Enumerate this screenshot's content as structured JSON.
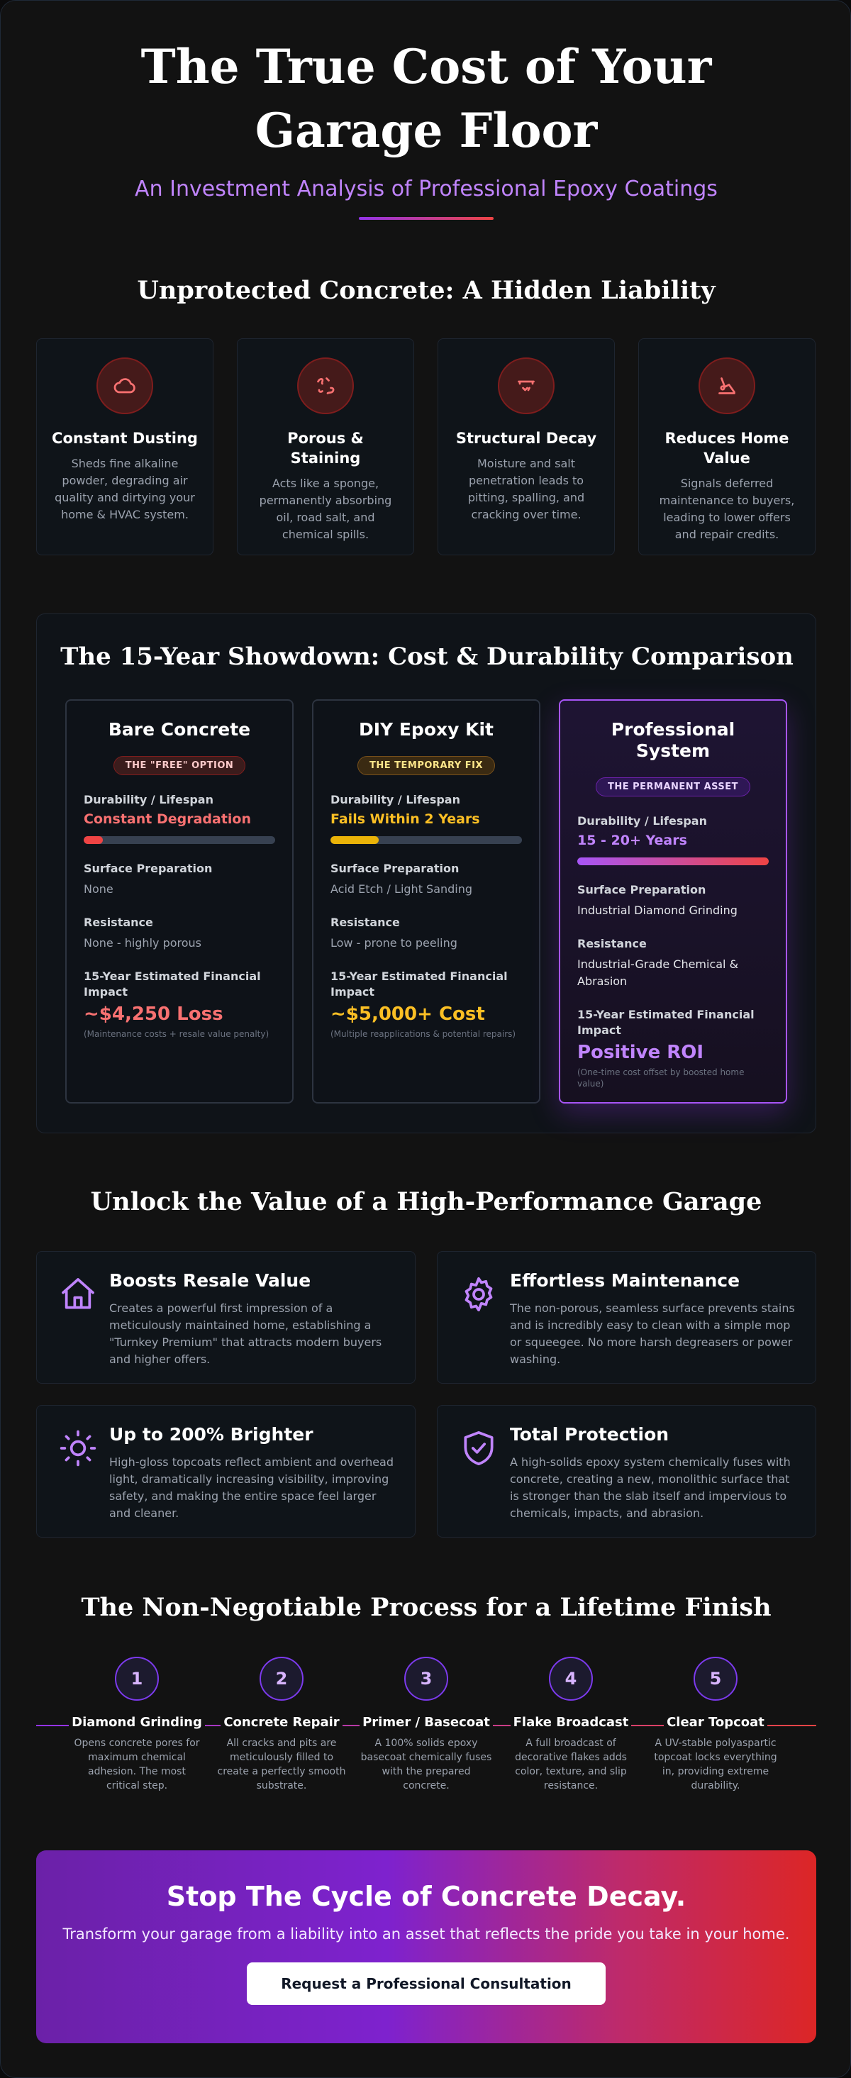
{
  "hero": {
    "title": "The True Cost of Your Garage Floor",
    "subtitle": "An Investment Analysis of Professional Epoxy Coatings"
  },
  "liability": {
    "title": "Unprotected Concrete: A Hidden Liability",
    "items": [
      {
        "icon": "cloud-icon",
        "title": "Constant Dusting",
        "text": "Sheds fine alkaline powder, degrading air quality and dirtying your home & HVAC system."
      },
      {
        "icon": "spill-icon",
        "title": "Porous & Staining",
        "text": "Acts like a sponge, permanently absorbing oil, road salt, and chemical spills."
      },
      {
        "icon": "crack-icon",
        "title": "Structural Decay",
        "text": "Moisture and salt penetration leads to pitting, spalling, and cracking over time."
      },
      {
        "icon": "value-drop-icon",
        "title": "Reduces Home Value",
        "text": "Signals deferred maintenance to buyers, leading to lower offers and repair credits."
      }
    ]
  },
  "comparison": {
    "title": "The 15-Year Showdown: Cost & Durability Comparison",
    "labels": {
      "durability": "Durability / Lifespan",
      "prep": "Surface Preparation",
      "resistance": "Resistance",
      "financial": "15-Year Estimated Financial Impact"
    },
    "cards": [
      {
        "title": "Bare Concrete",
        "badge": "THE \"FREE\" OPTION",
        "durability": "Constant Degradation",
        "durability_fill": 0.1,
        "prep": "None",
        "resistance": "None - highly porous",
        "financial": "~$4,250 Loss",
        "note": "(Maintenance costs + resale value penalty)"
      },
      {
        "title": "DIY Epoxy Kit",
        "badge": "THE TEMPORARY FIX",
        "durability": "Fails Within 2 Years",
        "durability_fill": 0.25,
        "prep": "Acid Etch / Light Sanding",
        "resistance": "Low - prone to peeling",
        "financial": "~$5,000+ Cost",
        "note": "(Multiple reapplications & potential repairs)"
      },
      {
        "title": "Professional System",
        "badge": "THE PERMANENT ASSET",
        "durability": "15 - 20+ Years",
        "durability_fill": 1.0,
        "prep": "Industrial Diamond Grinding",
        "resistance": "Industrial-Grade Chemical & Abrasion",
        "financial": "Positive ROI",
        "note": "(One-time cost offset by boosted home value)"
      }
    ],
    "colors": {
      "red": "#f87171",
      "yellow": "#fbbf24",
      "purple": "#c084fc"
    }
  },
  "benefits": {
    "title": "Unlock the Value of a High-Performance Garage",
    "items": [
      {
        "icon": "home-icon",
        "title": "Boosts Resale Value",
        "text": "Creates a powerful first impression of a meticulously maintained home, establishing a \"Turnkey Premium\" that attracts modern buyers and higher offers."
      },
      {
        "icon": "gear-icon",
        "title": "Effortless Maintenance",
        "text": "The non-porous, seamless surface prevents stains and is incredibly easy to clean with a simple mop or squeegee. No more harsh degreasers or power washing."
      },
      {
        "icon": "sun-icon",
        "title": "Up to 200% Brighter",
        "text": "High-gloss topcoats reflect ambient and overhead light, dramatically increasing visibility, improving safety, and making the entire space feel larger and cleaner."
      },
      {
        "icon": "shield-check-icon",
        "title": "Total Protection",
        "text": "A high-solids epoxy system chemically fuses with concrete, creating a new, monolithic surface that is stronger than the slab itself and impervious to chemicals, impacts, and abrasion."
      }
    ]
  },
  "process": {
    "title": "The Non-Negotiable Process for a Lifetime Finish",
    "steps": [
      {
        "num": "1",
        "title": "Diamond Grinding",
        "text": "Opens concrete pores for maximum chemical adhesion. The most critical step."
      },
      {
        "num": "2",
        "title": "Concrete Repair",
        "text": "All cracks and pits are meticulously filled to create a perfectly smooth substrate."
      },
      {
        "num": "3",
        "title": "Primer / Basecoat",
        "text": "A 100% solids epoxy basecoat chemically fuses with the prepared concrete."
      },
      {
        "num": "4",
        "title": "Flake Broadcast",
        "text": "A full broadcast of decorative flakes adds color, texture, and slip resistance."
      },
      {
        "num": "5",
        "title": "Clear Topcoat",
        "text": "A UV-stable polyaspartic topcoat locks everything in, providing extreme durability."
      }
    ]
  },
  "cta": {
    "title": "Stop The Cycle of Concrete Decay.",
    "text": "Transform your garage from a liability into an asset that reflects the pride you take in your home.",
    "button": "Request a Professional Consultation"
  }
}
